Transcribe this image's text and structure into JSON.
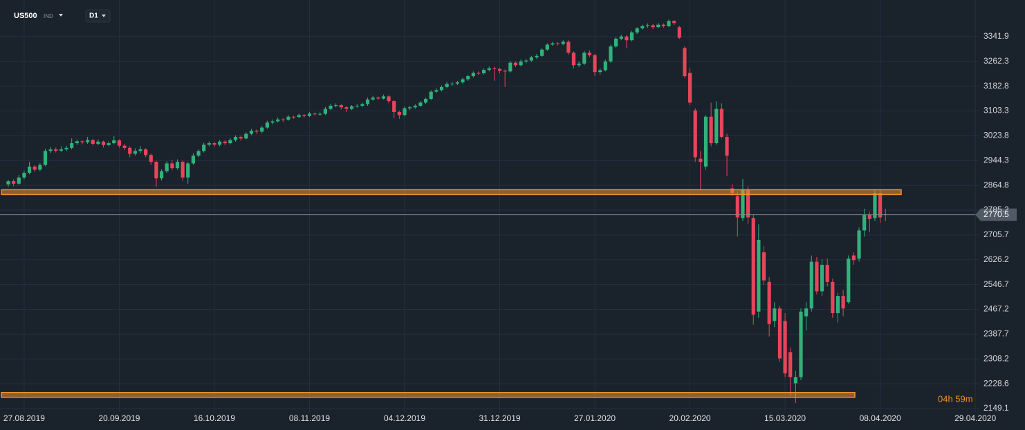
{
  "chart_data": {
    "type": "candlestick",
    "symbol": "US500",
    "symbol_kind": "IND",
    "interval": "D1",
    "countdown": "04h 59m",
    "up_color": "#2fb37a",
    "down_color": "#e8455a",
    "level_color": "#f0922b",
    "levels": [
      2843,
      2193
    ],
    "last_price": 2770.5,
    "ylim": [
      2138,
      3459
    ],
    "yticks": [
      2149.1,
      2228.6,
      2308.2,
      2387.7,
      2467.2,
      2546.7,
      2626.2,
      2705.7,
      2785.2,
      2864.8,
      2944.3,
      3023.8,
      3103.3,
      3182.8,
      3262.3,
      3341.9
    ],
    "grid": true,
    "categories": [
      null,
      null,
      null,
      "27.08.2019",
      null,
      null,
      null,
      null,
      null,
      null,
      null,
      null,
      null,
      null,
      null,
      null,
      null,
      null,
      null,
      null,
      null,
      "20.09.2019",
      null,
      null,
      null,
      null,
      null,
      null,
      null,
      null,
      null,
      null,
      null,
      null,
      null,
      null,
      null,
      null,
      null,
      "16.10.2019",
      null,
      null,
      null,
      null,
      null,
      null,
      null,
      null,
      null,
      null,
      null,
      null,
      null,
      null,
      null,
      null,
      null,
      "08.11.2019",
      null,
      null,
      null,
      null,
      null,
      null,
      null,
      null,
      null,
      null,
      null,
      null,
      null,
      null,
      null,
      null,
      null,
      "04.12.2019",
      null,
      null,
      null,
      null,
      null,
      null,
      null,
      null,
      null,
      null,
      null,
      null,
      null,
      null,
      null,
      null,
      null,
      "31.12.2019",
      null,
      null,
      null,
      null,
      null,
      null,
      null,
      null,
      null,
      null,
      null,
      null,
      null,
      null,
      null,
      null,
      null,
      "27.01.2020",
      null,
      null,
      null,
      null,
      null,
      null,
      null,
      null,
      null,
      null,
      null,
      null,
      null,
      null,
      null,
      null,
      null,
      "20.02.2020",
      null,
      null,
      null,
      null,
      null,
      null,
      null,
      null,
      null,
      null,
      null,
      null,
      null,
      null,
      null,
      null,
      null,
      "15.03.2020",
      null,
      null,
      null,
      null,
      null,
      null,
      null,
      null,
      null,
      null,
      null,
      null,
      null,
      null,
      null,
      null,
      null,
      "08.04.2020",
      null,
      null,
      null,
      null,
      null,
      null,
      null,
      null,
      null,
      null,
      null,
      null,
      null,
      null,
      null,
      null,
      null,
      "29.04.2020"
    ],
    "open": [
      2868,
      2878,
      2870,
      2890,
      2905,
      2925,
      2915,
      2930,
      2975,
      2980,
      2976,
      2980,
      2985,
      3000,
      3006,
      3003,
      3010,
      2998,
      3005,
      2994,
      3000,
      3009,
      2992,
      2985,
      2966,
      2975,
      2980,
      2962,
      2940,
      2887,
      2910,
      2935,
      2920,
      2940,
      2890,
      2935,
      2960,
      2975,
      2995,
      3000,
      2995,
      3005,
      3000,
      3010,
      3020,
      3015,
      3030,
      3040,
      3037,
      3050,
      3066,
      3070,
      3076,
      3075,
      3085,
      3084,
      3090,
      3087,
      3095,
      3093,
      3094,
      3110,
      3120,
      3122,
      3115,
      3110,
      3118,
      3120,
      3125,
      3140,
      3146,
      3143,
      3150,
      3135,
      3100,
      3090,
      3112,
      3115,
      3120,
      3130,
      3142,
      3165,
      3170,
      3180,
      3190,
      3191,
      3195,
      3205,
      3215,
      3225,
      3224,
      3235,
      3240,
      3238,
      3232,
      3230,
      3258,
      3250,
      3262,
      3265,
      3275,
      3280,
      3300,
      3316,
      3320,
      3318,
      3325,
      3290,
      3250,
      3255,
      3290,
      3282,
      3228,
      3234,
      3262,
      3310,
      3335,
      3342,
      3330,
      3355,
      3368,
      3375,
      3378,
      3372,
      3380,
      3375,
      3392,
      3372,
      3305,
      3225,
      3105,
      2950,
      2925,
      3085,
      3000,
      3110,
      3020,
      2855,
      2830,
      2760,
      2850,
      2760,
      2460,
      2650,
      2555,
      2430,
      2470,
      2430,
      2330,
      2230,
      2250,
      2445,
      2470,
      2620,
      2525,
      2610,
      2555,
      2455,
      2510,
      2490,
      2640,
      2630,
      2720,
      2770,
      2760,
      2840,
      2772,
      null,
      null,
      null,
      null,
      null,
      null,
      null,
      null,
      null,
      null,
      null,
      null,
      null,
      null,
      null,
      null,
      null
    ],
    "high": [
      2882,
      2884,
      2898,
      2912,
      2940,
      2930,
      2936,
      2982,
      2988,
      2986,
      2990,
      2992,
      3015,
      3012,
      3010,
      3020,
      3014,
      3012,
      3008,
      3006,
      3022,
      3012,
      2998,
      2990,
      2984,
      2990,
      2984,
      2966,
      2944,
      2916,
      2942,
      2946,
      2948,
      2944,
      2940,
      2968,
      2980,
      3002,
      3006,
      3004,
      3010,
      3010,
      3016,
      3025,
      3024,
      3035,
      3046,
      3044,
      3055,
      3072,
      3076,
      3082,
      3080,
      3090,
      3088,
      3095,
      3093,
      3100,
      3098,
      3099,
      3116,
      3126,
      3128,
      3125,
      3119,
      3122,
      3125,
      3130,
      3146,
      3152,
      3150,
      3156,
      3154,
      3138,
      3104,
      3118,
      3120,
      3125,
      3135,
      3146,
      3170,
      3176,
      3185,
      3196,
      3196,
      3200,
      3210,
      3220,
      3230,
      3230,
      3240,
      3246,
      3245,
      3242,
      3236,
      3264,
      3262,
      3268,
      3270,
      3280,
      3286,
      3305,
      3320,
      3325,
      3324,
      3330,
      3330,
      3294,
      3262,
      3296,
      3298,
      3286,
      3240,
      3268,
      3316,
      3340,
      3348,
      3346,
      3360,
      3372,
      3380,
      3384,
      3382,
      3386,
      3384,
      3396,
      3395,
      3376,
      3310,
      3240,
      3112,
      2975,
      3090,
      3130,
      3135,
      3128,
      3030,
      2868,
      2845,
      2885,
      2862,
      2770,
      2740,
      2670,
      2570,
      2490,
      2478,
      2455,
      2345,
      2270,
      2470,
      2490,
      2640,
      2635,
      2628,
      2630,
      2565,
      2520,
      2530,
      2640,
      2650,
      2730,
      2790,
      2780,
      2850,
      2850,
      2790,
      null,
      null,
      null,
      null,
      null,
      null,
      null,
      null,
      null,
      null,
      null,
      null,
      null,
      null,
      null,
      null,
      null
    ],
    "low": [
      2860,
      2862,
      2866,
      2884,
      2900,
      2908,
      2910,
      2926,
      2968,
      2970,
      2972,
      2975,
      2980,
      2994,
      2996,
      2998,
      2992,
      2993,
      2986,
      2990,
      2996,
      2985,
      2978,
      2955,
      2960,
      2968,
      2955,
      2930,
      2860,
      2880,
      2904,
      2914,
      2915,
      2880,
      2870,
      2930,
      2955,
      2970,
      2990,
      2988,
      2990,
      2994,
      2996,
      3005,
      3008,
      3012,
      3026,
      3030,
      3032,
      3046,
      3060,
      3066,
      3068,
      3072,
      3078,
      3080,
      3082,
      3084,
      3088,
      3088,
      3090,
      3106,
      3115,
      3108,
      3100,
      3106,
      3114,
      3116,
      3120,
      3136,
      3138,
      3140,
      3128,
      3080,
      3078,
      3086,
      3106,
      3110,
      3116,
      3126,
      3138,
      3160,
      3166,
      3176,
      3184,
      3186,
      3190,
      3200,
      3210,
      3218,
      3220,
      3230,
      3200,
      3224,
      3180,
      3226,
      3244,
      3246,
      3256,
      3260,
      3270,
      3276,
      3296,
      3312,
      3312,
      3314,
      3284,
      3240,
      3244,
      3250,
      3276,
      3215,
      3220,
      3230,
      3258,
      3306,
      3330,
      3305,
      3326,
      3350,
      3364,
      3370,
      3366,
      3368,
      3370,
      3372,
      3378,
      3334,
      3210,
      3122,
      2940,
      2850,
      2915,
      2990,
      2995,
      3015,
      2894,
      2830,
      2700,
      2750,
      2740,
      2418,
      2440,
      2545,
      2380,
      2410,
      2300,
      2250,
      2190,
      2167,
      2240,
      2400,
      2460,
      2515,
      2510,
      2540,
      2440,
      2425,
      2445,
      2485,
      2610,
      2620,
      2700,
      2715,
      2750,
      2745,
      2750,
      null,
      null,
      null,
      null,
      null,
      null,
      null,
      null,
      null,
      null,
      null,
      null,
      null,
      null,
      null,
      null,
      null
    ],
    "close": [
      2878,
      2870,
      2890,
      2905,
      2925,
      2915,
      2930,
      2975,
      2980,
      2976,
      2980,
      2985,
      3000,
      3006,
      3003,
      3010,
      2998,
      3005,
      2994,
      3000,
      3009,
      2992,
      2985,
      2966,
      2975,
      2980,
      2962,
      2940,
      2887,
      2910,
      2935,
      2920,
      2940,
      2890,
      2935,
      2960,
      2975,
      2995,
      3000,
      2995,
      3005,
      3000,
      3010,
      3020,
      3015,
      3030,
      3040,
      3037,
      3050,
      3066,
      3070,
      3076,
      3075,
      3085,
      3084,
      3090,
      3087,
      3095,
      3093,
      3094,
      3110,
      3120,
      3122,
      3115,
      3110,
      3118,
      3120,
      3125,
      3140,
      3146,
      3143,
      3150,
      3135,
      3100,
      3090,
      3112,
      3115,
      3120,
      3130,
      3142,
      3165,
      3170,
      3180,
      3190,
      3191,
      3195,
      3205,
      3215,
      3225,
      3224,
      3235,
      3240,
      3238,
      3232,
      3230,
      3258,
      3250,
      3262,
      3265,
      3275,
      3280,
      3300,
      3316,
      3320,
      3318,
      3325,
      3290,
      3250,
      3255,
      3290,
      3282,
      3228,
      3234,
      3262,
      3310,
      3335,
      3342,
      3330,
      3355,
      3368,
      3375,
      3378,
      3372,
      3380,
      3375,
      3392,
      3385,
      3338,
      3215,
      3130,
      2955,
      2940,
      3085,
      3000,
      3110,
      3020,
      2960,
      2840,
      2762,
      2850,
      2762,
      2450,
      2690,
      2560,
      2420,
      2470,
      2310,
      2262,
      2250,
      2250,
      2460,
      2470,
      2620,
      2525,
      2610,
      2555,
      2455,
      2510,
      2470,
      2630,
      2625,
      2720,
      2770,
      2757,
      2840,
      2762,
      2771,
      null,
      null,
      null,
      null,
      null,
      null,
      null,
      null,
      null,
      null,
      null,
      null,
      null,
      null,
      null,
      null,
      null
    ]
  }
}
